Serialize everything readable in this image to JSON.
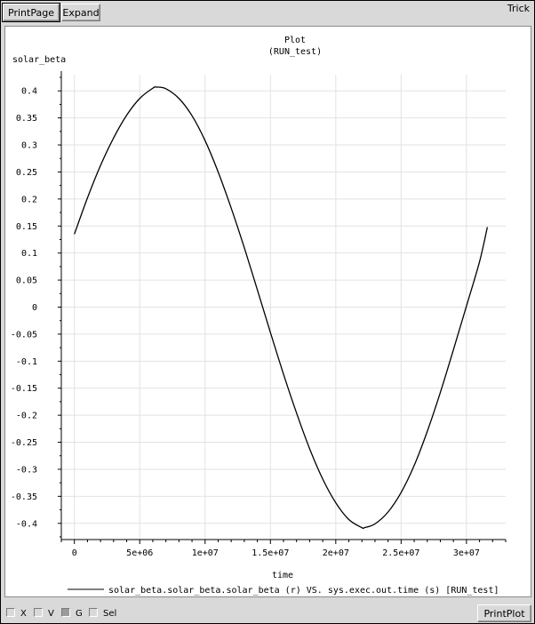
{
  "toolbar": {
    "print_page": "PrintPage",
    "expand": "Expand",
    "app_name": "Trick"
  },
  "bottom": {
    "checkboxes": [
      {
        "label": "X",
        "checked": false
      },
      {
        "label": "V",
        "checked": false
      },
      {
        "label": "G",
        "checked": true
      },
      {
        "label": "Sel",
        "checked": false
      }
    ],
    "print_plot": "PrintPlot"
  },
  "chart_data": {
    "type": "line",
    "title": "Plot",
    "subtitle": "(RUN_test)",
    "xlabel": "time",
    "ylabel": "solar_beta",
    "xlim": [
      -1000000,
      33000000
    ],
    "ylim": [
      -0.43,
      0.43
    ],
    "grid": true,
    "x_ticks": [
      0,
      5000000,
      10000000,
      15000000,
      20000000,
      25000000,
      30000000
    ],
    "x_tick_labels": [
      "0",
      "5e+06",
      "1e+07",
      "1.5e+07",
      "2e+07",
      "2.5e+07",
      "3e+07"
    ],
    "y_ticks": [
      0.4,
      0.35,
      0.3,
      0.25,
      0.2,
      0.15,
      0.1,
      0.05,
      0,
      -0.05,
      -0.1,
      -0.15,
      -0.2,
      -0.25,
      -0.3,
      -0.35,
      -0.4
    ],
    "y_tick_labels": [
      "0.4",
      "0.35",
      "0.3",
      "0.25",
      "0.2",
      "0.15",
      "0.1",
      "0.05",
      "0",
      "-0.05",
      "-0.1",
      "-0.15",
      "-0.2",
      "-0.25",
      "-0.3",
      "-0.35",
      "-0.4"
    ],
    "legend": "solar_beta.solar_beta.solar_beta (r) VS. sys.exec.out.time (s) [RUN_test]",
    "legend_position": "bottom",
    "series": [
      {
        "name": "solar_beta.solar_beta.solar_beta (r) VS. sys.exec.out.time (s) [RUN_test]",
        "color": "#000000",
        "x": [
          0,
          1000000,
          2000000,
          3000000,
          4000000,
          5000000,
          6000000,
          6300000,
          7000000,
          8000000,
          9000000,
          10000000,
          11000000,
          12000000,
          13000000,
          14000000,
          15000000,
          16000000,
          17000000,
          18000000,
          19000000,
          20000000,
          21000000,
          22000000,
          22200000,
          23000000,
          24000000,
          25000000,
          26000000,
          27000000,
          28000000,
          29000000,
          30000000,
          31000000,
          31600000
        ],
        "y": [
          0.135,
          0.202,
          0.262,
          0.313,
          0.355,
          0.386,
          0.405,
          0.407,
          0.404,
          0.386,
          0.354,
          0.308,
          0.25,
          0.183,
          0.11,
          0.032,
          -0.047,
          -0.124,
          -0.196,
          -0.262,
          -0.318,
          -0.362,
          -0.393,
          -0.408,
          -0.408,
          -0.401,
          -0.379,
          -0.343,
          -0.293,
          -0.23,
          -0.158,
          -0.079,
          0.002,
          0.084,
          0.148
        ]
      }
    ]
  }
}
